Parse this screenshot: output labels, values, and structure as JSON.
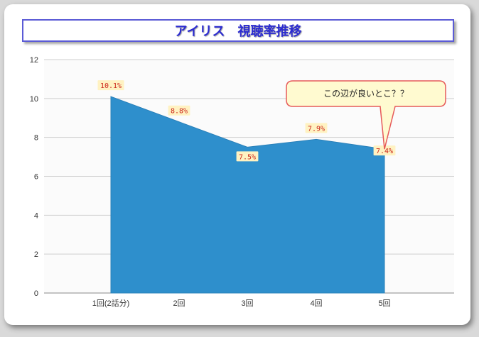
{
  "chart_data": {
    "type": "area",
    "title": "アイリス　視聴率推移",
    "categories": [
      "1回(2話分)",
      "2回",
      "3回",
      "4回",
      "5回"
    ],
    "values": [
      10.1,
      8.8,
      7.5,
      7.9,
      7.4
    ],
    "data_labels": [
      "10.1%",
      "8.8%",
      "7.5%",
      "7.9%",
      "7.4%"
    ],
    "ylim": [
      0,
      12
    ],
    "yticks": [
      "0",
      "2",
      "4",
      "6",
      "8",
      "10",
      "12"
    ],
    "grid": true,
    "series_color": "#2e8fcc",
    "annotation": {
      "text": "この辺が良いとこ？？",
      "target_index": 4
    }
  }
}
